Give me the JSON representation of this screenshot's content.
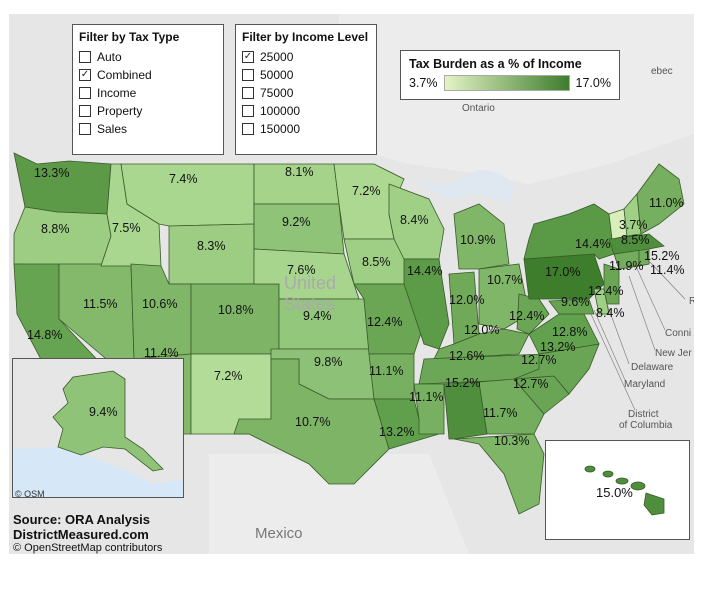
{
  "filters": {
    "tax_type": {
      "title": "Filter by Tax Type",
      "options": [
        {
          "label": "Auto",
          "checked": false
        },
        {
          "label": "Combined",
          "checked": true
        },
        {
          "label": "Income",
          "checked": false
        },
        {
          "label": "Property",
          "checked": false
        },
        {
          "label": "Sales",
          "checked": false
        }
      ]
    },
    "income_level": {
      "title": "Filter by Income Level",
      "options": [
        {
          "label": "25000",
          "checked": true
        },
        {
          "label": "50000",
          "checked": false
        },
        {
          "label": "75000",
          "checked": false
        },
        {
          "label": "100000",
          "checked": false
        },
        {
          "label": "150000",
          "checked": false
        }
      ]
    }
  },
  "legend": {
    "title": "Tax Burden as a % of Income",
    "min": "3.7%",
    "max": "17.0%",
    "color_low": "#e4f3c5",
    "color_high": "#3d7d2c"
  },
  "source": {
    "line1": "Source: ORA Analysis",
    "line2": "DistrictMeasured.com",
    "line3": "© OpenStreetMap contributors"
  },
  "osm_credit": "© OSM",
  "geo_labels": {
    "ontario": "Ontario",
    "quebec": "ebec",
    "united": "United",
    "states": "States",
    "mexico": "Mexico",
    "nj": "New Jer",
    "delaware": "Delaware",
    "maryland": "Maryland",
    "district": "District",
    "of_columbia": "of Columbia",
    "conn": "Conni",
    "ri": "RI"
  },
  "state_values": {
    "WA": "13.3%",
    "OR": "8.8%",
    "CA": "14.8%",
    "NV": "11.5%",
    "ID": "7.5%",
    "MT": "7.4%",
    "WY": "8.3%",
    "UT": "10.6%",
    "CO": "10.8%",
    "AZ": "11.4%",
    "NM": "7.2%",
    "ND": "8.1%",
    "SD": "9.2%",
    "NE": "7.6%",
    "KS": "9.4%",
    "OK": "9.8%",
    "TX": "10.7%",
    "MN": "7.2%",
    "IA": "8.5%",
    "MO": "12.4%",
    "AR": "11.1%",
    "LA": "13.2%",
    "WI": "8.4%",
    "IL": "14.4%",
    "MI": "10.9%",
    "IN": "12.0%",
    "OH": "10.7%",
    "KY": "12.0%",
    "TN": "12.6%",
    "MS": "11.1%",
    "AL": "15.2%",
    "GA": "11.7%",
    "FL": "10.3%",
    "SC": "12.7%",
    "NC": "12.7%",
    "VA": "13.2%",
    "WV": "12.4%",
    "PA": "17.0%",
    "NY": "14.4%",
    "VT": "3.7%",
    "NH": "8.5%",
    "ME": "11.0%",
    "MA": "15.2%",
    "RI": "11.4%",
    "CT": "11.9%",
    "NJ": "12.4%",
    "DE": "8.4%",
    "MD": "12.8%",
    "DC": "9.6%",
    "AK": "9.4%",
    "HI": "15.0%"
  },
  "state_colors": {
    "WA": "#5c9a48",
    "OR": "#9ccd82",
    "CA": "#66a451",
    "NV": "#84b96c",
    "ID": "#aad78f",
    "MT": "#aad78f",
    "WY": "#9ccd82",
    "UT": "#80b668",
    "CO": "#7db466",
    "AZ": "#84b96c",
    "NM": "#b4dc99",
    "ND": "#a5d38a",
    "SD": "#8ec378",
    "NE": "#a8d58d",
    "KS": "#93c77c",
    "OK": "#8cc177",
    "TX": "#7db466",
    "MN": "#acd891",
    "IA": "#9fcf84",
    "MO": "#6aa654",
    "AR": "#78b062",
    "LA": "#60a04c",
    "WI": "#a0d086",
    "IL": "#5c9b47",
    "MI": "#80b668",
    "IN": "#70aa59",
    "OH": "#80b668",
    "KY": "#70aa59",
    "TN": "#6ba756",
    "MS": "#78b062",
    "AL": "#4f8e3c",
    "GA": "#74ad5e",
    "FL": "#7eb566",
    "SC": "#69a555",
    "NC": "#69a555",
    "VA": "#62a14e",
    "WV": "#6aa654",
    "PA": "#3d7d2c",
    "NY": "#5a9946",
    "VT": "#d8eebb",
    "NH": "#a0d086",
    "ME": "#76af60",
    "MA": "#4f8e3c",
    "RI": "#74ad5e",
    "CT": "#73ac5c",
    "NJ": "#6aa654",
    "DE": "#a0d086",
    "MD": "#65a351",
    "DC": "#8ec378",
    "AK": "#8ec378",
    "HI": "#4f8e3c"
  }
}
